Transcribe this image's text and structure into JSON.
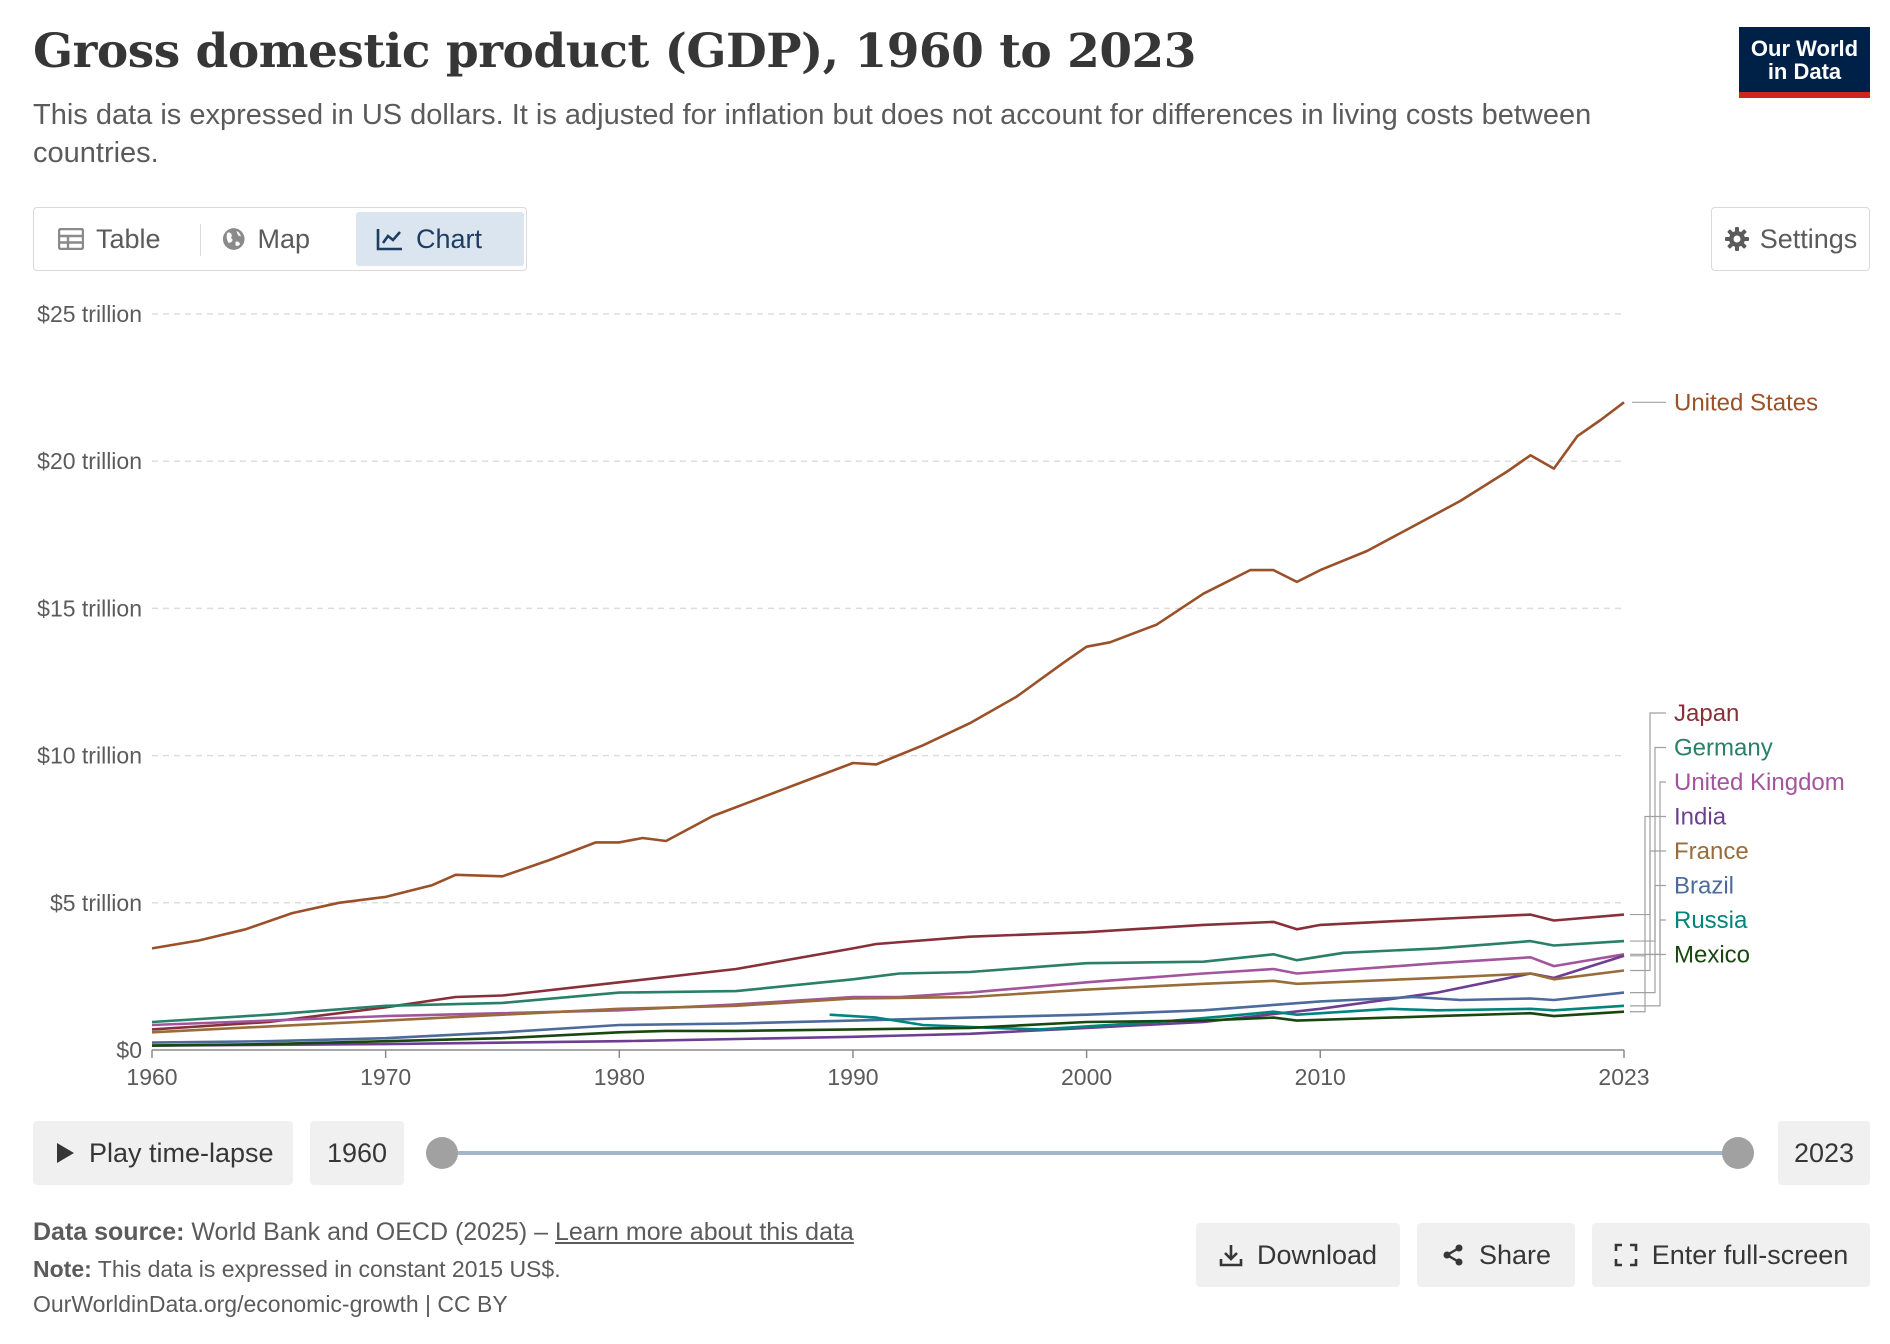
{
  "header": {
    "title": "Gross domestic product (GDP), 1960 to 2023",
    "subtitle": "This data is expressed in US dollars. It is adjusted for inflation but does not account for differences in living costs between countries.",
    "logo_line1": "Our World",
    "logo_line2": "in Data"
  },
  "tabs": [
    {
      "label": "Table",
      "icon": "table-icon",
      "active": false
    },
    {
      "label": "Map",
      "icon": "globe-icon",
      "active": false
    },
    {
      "label": "Chart",
      "icon": "line-chart-icon",
      "active": true
    }
  ],
  "settings_label": "Settings",
  "controls": {
    "play_label": "Play time-lapse",
    "start_year": "1960",
    "end_year": "2023"
  },
  "footer": {
    "source_prefix": "Data source:",
    "source_text": "World Bank and OECD (2025) –",
    "learn_more": "Learn more about this data",
    "note_prefix": "Note:",
    "note_text": "This data is expressed in constant 2015 US$.",
    "url_text": "OurWorldinData.org/economic-growth | CC BY"
  },
  "actions": {
    "download": "Download",
    "share": "Share",
    "fullscreen": "Enter full-screen"
  },
  "chart_data": {
    "type": "line",
    "title": "Gross domestic product (GDP), 1960 to 2023",
    "xlabel": "",
    "ylabel": "",
    "xlim": [
      1960,
      2023
    ],
    "ylim": [
      0,
      25
    ],
    "x_ticks": [
      "1960",
      "1970",
      "1980",
      "1990",
      "2000",
      "2010",
      "2023"
    ],
    "x_tick_values": [
      1960,
      1970,
      1980,
      1990,
      2000,
      2010,
      2023
    ],
    "y_ticks": [
      "$0",
      "$5 trillion",
      "$10 trillion",
      "$15 trillion",
      "$20 trillion",
      "$25 trillion"
    ],
    "y_tick_values": [
      0,
      5,
      10,
      15,
      20,
      25
    ],
    "grid": "horizontal dashed",
    "legend": "right (line-end labels)",
    "series": [
      {
        "name": "United States",
        "color": "#9a5129",
        "points": [
          [
            1960,
            3.45
          ],
          [
            1962,
            3.72
          ],
          [
            1964,
            4.1
          ],
          [
            1966,
            4.65
          ],
          [
            1968,
            5.0
          ],
          [
            1970,
            5.2
          ],
          [
            1972,
            5.6
          ],
          [
            1973,
            5.95
          ],
          [
            1975,
            5.9
          ],
          [
            1977,
            6.45
          ],
          [
            1979,
            7.05
          ],
          [
            1980,
            7.05
          ],
          [
            1981,
            7.2
          ],
          [
            1982,
            7.1
          ],
          [
            1984,
            7.95
          ],
          [
            1986,
            8.55
          ],
          [
            1988,
            9.15
          ],
          [
            1990,
            9.75
          ],
          [
            1991,
            9.7
          ],
          [
            1993,
            10.35
          ],
          [
            1995,
            11.1
          ],
          [
            1997,
            12.0
          ],
          [
            1999,
            13.15
          ],
          [
            2000,
            13.7
          ],
          [
            2001,
            13.85
          ],
          [
            2003,
            14.45
          ],
          [
            2005,
            15.5
          ],
          [
            2007,
            16.3
          ],
          [
            2008,
            16.3
          ],
          [
            2009,
            15.9
          ],
          [
            2010,
            16.3
          ],
          [
            2012,
            16.95
          ],
          [
            2014,
            17.8
          ],
          [
            2016,
            18.65
          ],
          [
            2018,
            19.65
          ],
          [
            2019,
            20.2
          ],
          [
            2020,
            19.75
          ],
          [
            2021,
            20.85
          ],
          [
            2022,
            21.4
          ],
          [
            2023,
            22.0
          ]
        ]
      },
      {
        "name": "Japan",
        "color": "#883039",
        "points": [
          [
            1960,
            0.7
          ],
          [
            1965,
            0.95
          ],
          [
            1970,
            1.45
          ],
          [
            1973,
            1.8
          ],
          [
            1975,
            1.85
          ],
          [
            1980,
            2.3
          ],
          [
            1985,
            2.75
          ],
          [
            1990,
            3.45
          ],
          [
            1991,
            3.6
          ],
          [
            1995,
            3.85
          ],
          [
            2000,
            4.0
          ],
          [
            2005,
            4.25
          ],
          [
            2008,
            4.35
          ],
          [
            2009,
            4.1
          ],
          [
            2010,
            4.25
          ],
          [
            2015,
            4.45
          ],
          [
            2019,
            4.6
          ],
          [
            2020,
            4.4
          ],
          [
            2023,
            4.6
          ]
        ]
      },
      {
        "name": "Germany",
        "color": "#2a7f68",
        "points": [
          [
            1960,
            0.95
          ],
          [
            1965,
            1.2
          ],
          [
            1970,
            1.5
          ],
          [
            1975,
            1.6
          ],
          [
            1980,
            1.95
          ],
          [
            1985,
            2.0
          ],
          [
            1990,
            2.4
          ],
          [
            1992,
            2.6
          ],
          [
            1995,
            2.65
          ],
          [
            2000,
            2.95
          ],
          [
            2005,
            3.0
          ],
          [
            2008,
            3.25
          ],
          [
            2009,
            3.05
          ],
          [
            2011,
            3.3
          ],
          [
            2015,
            3.45
          ],
          [
            2019,
            3.7
          ],
          [
            2020,
            3.55
          ],
          [
            2023,
            3.7
          ]
        ]
      },
      {
        "name": "United Kingdom",
        "color": "#a2559c",
        "points": [
          [
            1960,
            0.85
          ],
          [
            1965,
            1.0
          ],
          [
            1970,
            1.15
          ],
          [
            1975,
            1.25
          ],
          [
            1980,
            1.35
          ],
          [
            1985,
            1.55
          ],
          [
            1990,
            1.8
          ],
          [
            1992,
            1.8
          ],
          [
            1995,
            1.95
          ],
          [
            2000,
            2.3
          ],
          [
            2005,
            2.6
          ],
          [
            2008,
            2.75
          ],
          [
            2009,
            2.6
          ],
          [
            2015,
            2.95
          ],
          [
            2019,
            3.15
          ],
          [
            2020,
            2.85
          ],
          [
            2023,
            3.25
          ]
        ]
      },
      {
        "name": "India",
        "color": "#6d3e91",
        "points": [
          [
            1960,
            0.15
          ],
          [
            1970,
            0.2
          ],
          [
            1980,
            0.3
          ],
          [
            1990,
            0.45
          ],
          [
            1995,
            0.55
          ],
          [
            2000,
            0.75
          ],
          [
            2005,
            0.95
          ],
          [
            2010,
            1.4
          ],
          [
            2015,
            1.95
          ],
          [
            2019,
            2.6
          ],
          [
            2020,
            2.45
          ],
          [
            2023,
            3.2
          ]
        ]
      },
      {
        "name": "France",
        "color": "#996d39",
        "points": [
          [
            1960,
            0.6
          ],
          [
            1965,
            0.8
          ],
          [
            1970,
            1.0
          ],
          [
            1975,
            1.2
          ],
          [
            1980,
            1.4
          ],
          [
            1985,
            1.5
          ],
          [
            1990,
            1.75
          ],
          [
            1995,
            1.8
          ],
          [
            2000,
            2.05
          ],
          [
            2005,
            2.25
          ],
          [
            2008,
            2.35
          ],
          [
            2009,
            2.25
          ],
          [
            2015,
            2.45
          ],
          [
            2019,
            2.6
          ],
          [
            2020,
            2.4
          ],
          [
            2023,
            2.7
          ]
        ]
      },
      {
        "name": "Brazil",
        "color": "#4c6a9c",
        "points": [
          [
            1960,
            0.25
          ],
          [
            1965,
            0.3
          ],
          [
            1970,
            0.4
          ],
          [
            1975,
            0.6
          ],
          [
            1980,
            0.85
          ],
          [
            1985,
            0.9
          ],
          [
            1990,
            1.0
          ],
          [
            1995,
            1.1
          ],
          [
            2000,
            1.2
          ],
          [
            2005,
            1.35
          ],
          [
            2010,
            1.65
          ],
          [
            2014,
            1.8
          ],
          [
            2016,
            1.7
          ],
          [
            2019,
            1.75
          ],
          [
            2020,
            1.7
          ],
          [
            2023,
            1.95
          ]
        ]
      },
      {
        "name": "Russia",
        "color": "#00847e",
        "points": [
          [
            1989,
            1.2
          ],
          [
            1991,
            1.1
          ],
          [
            1993,
            0.85
          ],
          [
            1996,
            0.75
          ],
          [
            1998,
            0.7
          ],
          [
            2000,
            0.8
          ],
          [
            2003,
            0.95
          ],
          [
            2006,
            1.15
          ],
          [
            2008,
            1.3
          ],
          [
            2009,
            1.2
          ],
          [
            2013,
            1.4
          ],
          [
            2015,
            1.35
          ],
          [
            2019,
            1.4
          ],
          [
            2020,
            1.35
          ],
          [
            2023,
            1.5
          ]
        ]
      },
      {
        "name": "Mexico",
        "color": "#18470f",
        "points": [
          [
            1960,
            0.15
          ],
          [
            1965,
            0.2
          ],
          [
            1970,
            0.3
          ],
          [
            1975,
            0.4
          ],
          [
            1980,
            0.6
          ],
          [
            1982,
            0.65
          ],
          [
            1985,
            0.65
          ],
          [
            1990,
            0.7
          ],
          [
            1995,
            0.75
          ],
          [
            2000,
            0.95
          ],
          [
            2005,
            1.0
          ],
          [
            2008,
            1.1
          ],
          [
            2009,
            1.0
          ],
          [
            2015,
            1.15
          ],
          [
            2019,
            1.25
          ],
          [
            2020,
            1.15
          ],
          [
            2023,
            1.3
          ]
        ]
      }
    ]
  }
}
